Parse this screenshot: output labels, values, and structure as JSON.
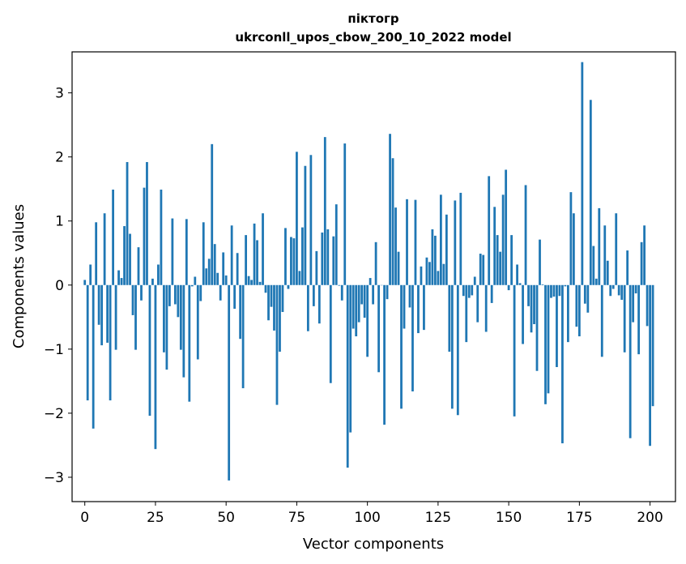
{
  "chart_data": {
    "type": "bar",
    "title": "піктогр",
    "subtitle": "ukrconll_upos_cbow_200_10_2022 model",
    "xlabel": "Vector components",
    "ylabel": "Components values",
    "xlim": [
      -4.5,
      209
    ],
    "ylim": [
      -3.38,
      3.64
    ],
    "xticks": [
      0,
      25,
      50,
      75,
      100,
      125,
      150,
      175,
      200
    ],
    "yticks": [
      -3,
      -2,
      -1,
      0,
      1,
      2,
      3
    ],
    "xtick_labels": [
      "0",
      "25",
      "50",
      "75",
      "100",
      "125",
      "150",
      "175",
      "200"
    ],
    "ytick_labels": [
      "−3",
      "−2",
      "−1",
      "0",
      "1",
      "2",
      "3"
    ],
    "grid": false,
    "legend": "none",
    "bar_color": "#1f77b4",
    "values": [
      0.08,
      -1.8,
      0.32,
      -2.24,
      0.98,
      -0.62,
      -0.94,
      1.12,
      -0.9,
      -1.8,
      1.49,
      -1.01,
      0.23,
      0.11,
      0.92,
      1.92,
      0.8,
      -0.47,
      -1.01,
      0.59,
      -0.24,
      1.52,
      1.92,
      -2.04,
      0.1,
      -2.56,
      0.32,
      1.49,
      -1.05,
      -1.32,
      -0.33,
      1.04,
      -0.3,
      -0.5,
      -1.01,
      -1.44,
      1.03,
      -1.82,
      -0.02,
      0.13,
      -1.16,
      -0.25,
      0.98,
      0.26,
      0.41,
      2.2,
      0.64,
      0.19,
      -0.24,
      0.51,
      0.15,
      -3.05,
      0.93,
      -0.37,
      0.5,
      -0.84,
      -1.61,
      0.78,
      0.14,
      0.08,
      0.96,
      0.7,
      0.05,
      1.12,
      -0.12,
      -0.55,
      -0.34,
      -0.71,
      -1.87,
      -1.04,
      -0.42,
      0.89,
      -0.06,
      0.75,
      0.73,
      2.08,
      0.22,
      0.9,
      1.86,
      -0.72,
      2.03,
      -0.33,
      0.53,
      -0.6,
      0.82,
      2.31,
      0.87,
      -1.53,
      0.76,
      1.26,
      -0.01,
      -0.24,
      2.21,
      -2.85,
      -2.3,
      -0.68,
      -0.8,
      -0.58,
      -0.3,
      -0.51,
      -1.12,
      0.11,
      -0.3,
      0.67,
      -1.36,
      0.0,
      -2.18,
      -0.22,
      2.36,
      1.98,
      1.21,
      0.52,
      -1.93,
      -0.68,
      1.34,
      -0.35,
      -1.66,
      1.33,
      -0.75,
      0.29,
      -0.7,
      0.43,
      0.36,
      0.87,
      0.77,
      0.22,
      1.41,
      0.33,
      1.1,
      -1.04,
      -1.93,
      1.32,
      -2.03,
      1.44,
      -0.17,
      -0.89,
      -0.2,
      -0.16,
      0.13,
      -0.58,
      0.49,
      0.47,
      -0.73,
      1.7,
      -0.28,
      1.22,
      0.78,
      0.52,
      1.41,
      1.8,
      -0.08,
      0.78,
      -2.05,
      0.32,
      0.03,
      -0.92,
      1.56,
      -0.33,
      -0.74,
      -0.61,
      -1.34,
      0.71,
      0.01,
      -1.86,
      -1.69,
      -0.2,
      -0.18,
      -1.28,
      -0.17,
      -2.47,
      -0.02,
      -0.89,
      1.45,
      1.12,
      -0.65,
      -0.8,
      3.48,
      -0.29,
      -0.43,
      2.89,
      0.61,
      0.1,
      1.2,
      -1.12,
      0.93,
      0.38,
      -0.17,
      -0.06,
      1.12,
      -0.16,
      -0.23,
      -1.05,
      0.54,
      -2.39,
      -0.58,
      -0.13,
      -1.08,
      0.67,
      0.93,
      -0.64,
      -2.51,
      -1.89
    ]
  }
}
